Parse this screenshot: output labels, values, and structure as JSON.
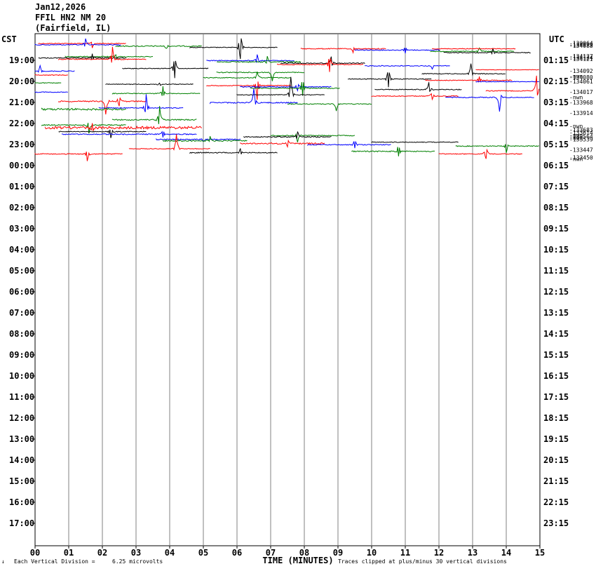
{
  "header": {
    "date": "Jan12,2026",
    "station": "FFIL HN2 NM 20",
    "location": "(Fairfield, IL)"
  },
  "labels": {
    "left_tz": "CST",
    "right_tz": "UTC",
    "xlabel": "TIME (MINUTES)",
    "footer_left": "Each Vertical Division =",
    "footer_value": "6.25 microvolts",
    "footer_right": "Traces clipped at plus/minus 30 vertical divisions",
    "corner_mark": "↓"
  },
  "colors": {
    "grid": "#808080",
    "trace_colors": [
      "#ff0000",
      "#0000ff",
      "#008000",
      "#000000"
    ]
  },
  "chart_data": {
    "type": "line",
    "title": "FFIL HN2 NM 20 (Fairfield, IL) Jan12,2026",
    "xlabel": "TIME (MINUTES)",
    "xlim": [
      0,
      15
    ],
    "x_ticks": [
      "00",
      "01",
      "02",
      "03",
      "04",
      "05",
      "06",
      "07",
      "08",
      "09",
      "10",
      "11",
      "12",
      "13",
      "14",
      "15"
    ],
    "left_hour_labels": [
      "19:00",
      "20:00",
      "21:00",
      "22:00",
      "23:00",
      "00:00",
      "01:00",
      "02:00",
      "03:00",
      "04:00",
      "05:00",
      "06:00",
      "07:00",
      "08:00",
      "09:00",
      "10:00",
      "11:00",
      "12:00",
      "13:00",
      "14:00",
      "15:00",
      "16:00",
      "17:00"
    ],
    "right_hour_labels": [
      "01:15",
      "02:15",
      "03:15",
      "04:15",
      "05:15",
      "06:15",
      "07:15",
      "08:15",
      "09:15",
      "10:15",
      "11:15",
      "12:15",
      "13:15",
      "14:15",
      "15:15",
      "16:15",
      "17:15",
      "18:15",
      "19:15",
      "20:15",
      "21:15",
      "22:15",
      "23:15"
    ],
    "rows_per_hour": 4,
    "first_row_hour_offset": -0.75,
    "right_annotations": [
      {
        "row": -0.08,
        "text": "-130064"
      },
      {
        "row": 0.17,
        "text": "-134079"
      },
      {
        "row": 0.42,
        "text": "-134088"
      },
      {
        "row": 2.42,
        "text": "-134127"
      },
      {
        "row": 2.67,
        "text": "-134124"
      },
      {
        "row": 2.92,
        "text": "-134121"
      },
      {
        "row": 5.17,
        "text": "-134092"
      },
      {
        "row": 6.17,
        "text": "-nwn"
      },
      {
        "row": 6.42,
        "text": "-134080"
      },
      {
        "row": 7.17,
        "text": "-134061"
      },
      {
        "row": 9.17,
        "text": "-134017"
      },
      {
        "row": 10.17,
        "text": "-nwn"
      },
      {
        "row": 11.17,
        "text": "-133968"
      },
      {
        "row": 13.17,
        "text": "-133914"
      },
      {
        "row": 15.67,
        "text": "-nwn"
      },
      {
        "row": 16.42,
        "text": "-133683"
      },
      {
        "row": 16.92,
        "text": "-133614"
      },
      {
        "row": 17.42,
        "text": "-nwn"
      },
      {
        "row": 17.67,
        "text": "-133564"
      },
      {
        "row": 17.92,
        "text": "-nwn"
      },
      {
        "row": 18.17,
        "text": "-133539"
      },
      {
        "row": 20.17,
        "text": "-133447"
      },
      {
        "row": 21.67,
        "text": "-133450"
      },
      {
        "row": 21.92,
        "text": "-nwn"
      }
    ],
    "segments": [
      {
        "row": 0,
        "start": 0.1,
        "end": 2.7,
        "noise": 0.6,
        "events": [
          {
            "at": 1.7,
            "amp": 6
          }
        ]
      },
      {
        "row": 0.25,
        "start": 0.0,
        "end": 2.55,
        "noise": 0.6,
        "events": [
          {
            "at": 1.5,
            "amp": -9
          }
        ]
      },
      {
        "row": 0.5,
        "start": 2.4,
        "end": 4.95,
        "noise": 0.8,
        "events": [
          {
            "at": 3.9,
            "amp": 4
          }
        ]
      },
      {
        "row": 0.75,
        "start": 4.6,
        "end": 7.2,
        "noise": 0.5,
        "events": [
          {
            "at": 6.1,
            "amp": -28
          }
        ]
      },
      {
        "row": 1,
        "start": 7.9,
        "end": 10.45,
        "noise": 0.6,
        "events": [
          {
            "at": 9.45,
            "amp": 5
          }
        ]
      },
      {
        "row": 1.25,
        "start": 9.5,
        "end": 12.05,
        "noise": 0.6,
        "events": [
          {
            "at": 11.0,
            "amp": -7
          }
        ]
      },
      {
        "row": 1.5,
        "start": 11.75,
        "end": 14.25,
        "noise": 0.6,
        "events": [
          {
            "at": 13.2,
            "amp": -5
          }
        ]
      },
      {
        "row": 1.75,
        "start": 12.15,
        "end": 14.75,
        "noise": 0.6,
        "events": [
          {
            "at": 13.6,
            "amp": -6
          }
        ]
      },
      {
        "row": 1.0,
        "start": 11.8,
        "end": 14.3,
        "noise": 0.5,
        "events": []
      },
      {
        "row": 2.5,
        "start": 0.9,
        "end": 3.5,
        "noise": 0.6,
        "events": [
          {
            "at": 2.4,
            "amp": 5
          }
        ]
      },
      {
        "row": 2.75,
        "start": 0.1,
        "end": 2.7,
        "noise": 0.6,
        "events": [
          {
            "at": 1.7,
            "amp": -6
          }
        ]
      },
      {
        "row": 3.0,
        "start": 0.7,
        "end": 3.3,
        "noise": 0.6,
        "events": [
          {
            "at": 2.3,
            "amp": -18
          }
        ]
      },
      {
        "row": 3.25,
        "start": 5.1,
        "end": 7.7,
        "noise": 0.6,
        "events": [
          {
            "at": 6.6,
            "amp": -9
          }
        ]
      },
      {
        "row": 3.5,
        "start": 5.4,
        "end": 7.9,
        "noise": 0.8,
        "events": [
          {
            "at": 6.9,
            "amp": -8
          }
        ]
      },
      {
        "row": 3.75,
        "start": 7.3,
        "end": 9.8,
        "noise": 0.6,
        "events": [
          {
            "at": 8.8,
            "amp": -10
          }
        ]
      },
      {
        "row": 4.0,
        "start": 7.2,
        "end": 9.75,
        "noise": 0.6,
        "events": [
          {
            "at": 8.75,
            "amp": -18
          }
        ]
      },
      {
        "row": 4.25,
        "start": 9.8,
        "end": 12.35,
        "noise": 0.6,
        "events": [
          {
            "at": 11.8,
            "amp": 4
          }
        ]
      },
      {
        "row": 4.75,
        "start": 2.6,
        "end": 5.15,
        "noise": 0.5,
        "events": [
          {
            "at": 4.15,
            "amp": -22
          }
        ]
      },
      {
        "row": 5.0,
        "start": 13.1,
        "end": 15.0,
        "noise": 0.3,
        "events": []
      },
      {
        "row": 5.25,
        "start": 0.0,
        "end": 1.2,
        "noise": 0.6,
        "events": [
          {
            "at": 0.15,
            "amp": -8
          }
        ]
      },
      {
        "row": 5.5,
        "start": 5.4,
        "end": 8.0,
        "noise": 0.6,
        "events": [
          {
            "at": 7.05,
            "amp": 12
          }
        ]
      },
      {
        "row": 5.75,
        "start": 11.5,
        "end": 14.0,
        "noise": 0.5,
        "events": [
          {
            "at": 12.95,
            "amp": -14
          }
        ]
      },
      {
        "row": 6.0,
        "start": 0.0,
        "end": 1.0,
        "noise": 0.5,
        "events": []
      },
      {
        "row": 6.5,
        "start": 5.0,
        "end": 7.6,
        "noise": 0.6,
        "events": [
          {
            "at": 6.6,
            "amp": -8
          }
        ]
      },
      {
        "row": 6.75,
        "start": 9.3,
        "end": 11.8,
        "noise": 0.6,
        "events": [
          {
            "at": 10.5,
            "amp": -20
          }
        ]
      },
      {
        "row": 7.0,
        "start": 11.6,
        "end": 14.2,
        "noise": 0.6,
        "events": [
          {
            "at": 13.2,
            "amp": -5
          }
        ]
      },
      {
        "row": 7.25,
        "start": 13.1,
        "end": 15.0,
        "noise": 0.5,
        "events": []
      },
      {
        "row": 7.5,
        "start": 0.0,
        "end": 0.8,
        "noise": 0.5,
        "events": []
      },
      {
        "row": 7.75,
        "start": 2.1,
        "end": 4.7,
        "noise": 0.5,
        "events": [
          {
            "at": 3.7,
            "amp": 3
          }
        ]
      },
      {
        "row": 8.0,
        "start": 5.1,
        "end": 7.6,
        "noise": 0.6,
        "events": [
          {
            "at": 6.6,
            "amp": 20
          }
        ]
      },
      {
        "row": 8.25,
        "start": 6.1,
        "end": 8.8,
        "noise": 0.6,
        "events": [
          {
            "at": 7.8,
            "amp": -8
          }
        ]
      },
      {
        "row": 8.5,
        "start": 6.4,
        "end": 9.05,
        "noise": 0.6,
        "events": [
          {
            "at": 7.95,
            "amp": -18
          }
        ]
      },
      {
        "row": 8.75,
        "start": 10.1,
        "end": 12.7,
        "noise": 0.6,
        "events": [
          {
            "at": 11.7,
            "amp": -10
          }
        ]
      },
      {
        "row": 9.0,
        "start": 13.4,
        "end": 15.0,
        "noise": 0.6,
        "events": [
          {
            "at": 14.9,
            "amp": -22
          }
        ]
      },
      {
        "row": 9.25,
        "start": 0.0,
        "end": 1.0,
        "noise": 0.5,
        "events": []
      },
      {
        "row": 9.5,
        "start": 2.3,
        "end": 4.9,
        "noise": 0.6,
        "events": [
          {
            "at": 3.8,
            "amp": -10
          }
        ]
      },
      {
        "row": 9.75,
        "start": 6.0,
        "end": 8.6,
        "noise": 0.5,
        "events": [
          {
            "at": 7.6,
            "amp": -25
          }
        ]
      },
      {
        "row": 10.0,
        "start": 10.0,
        "end": 12.6,
        "noise": 0.6,
        "events": [
          {
            "at": 11.8,
            "amp": -7
          }
        ]
      },
      {
        "row": 10.25,
        "start": 12.2,
        "end": 14.85,
        "noise": 0.6,
        "events": [
          {
            "at": 13.8,
            "amp": 20
          }
        ]
      },
      {
        "row": 11.0,
        "start": 0.7,
        "end": 3.3,
        "noise": 0.8,
        "events": [
          {
            "at": 2.1,
            "amp": 18
          },
          {
            "at": 2.5,
            "amp": -10
          }
        ]
      },
      {
        "row": 11.25,
        "start": 5.2,
        "end": 7.8,
        "noise": 0.8,
        "events": [
          {
            "at": 6.5,
            "amp": -20
          }
        ]
      },
      {
        "row": 11.5,
        "start": 7.5,
        "end": 10.0,
        "noise": 0.6,
        "events": [
          {
            "at": 8.95,
            "amp": 10
          }
        ]
      },
      {
        "row": 12.25,
        "start": 1.9,
        "end": 4.4,
        "noise": 0.6,
        "events": [
          {
            "at": 3.3,
            "amp": -20
          }
        ]
      },
      {
        "row": 12.5,
        "start": 0.2,
        "end": 2.7,
        "noise": 1.4,
        "events": []
      },
      {
        "row": 14.5,
        "start": 2.3,
        "end": 4.8,
        "noise": 0.8,
        "events": [
          {
            "at": 3.7,
            "amp": -20
          }
        ]
      },
      {
        "row": 15.5,
        "start": 0.2,
        "end": 2.7,
        "noise": 0.7,
        "events": [
          {
            "at": 1.6,
            "amp": 12
          }
        ]
      },
      {
        "row": 16.0,
        "start": 0.3,
        "end": 4.95,
        "noise": 1.8,
        "events": [
          {
            "at": 1.7,
            "amp": 8
          }
        ]
      },
      {
        "row": 16.75,
        "start": 0.7,
        "end": 3.3,
        "noise": 0.6,
        "events": [
          {
            "at": 2.25,
            "amp": 9
          }
        ]
      },
      {
        "row": 17.25,
        "start": 0.8,
        "end": 4.8,
        "noise": 0.7,
        "events": [
          {
            "at": 3.8,
            "amp": -8
          }
        ]
      },
      {
        "row": 17.5,
        "start": 7.0,
        "end": 9.5,
        "noise": 0.6,
        "events": [
          {
            "at": 7.8,
            "amp": 9
          }
        ]
      },
      {
        "row": 17.75,
        "start": 6.2,
        "end": 8.8,
        "noise": 0.7,
        "events": [
          {
            "at": 7.8,
            "amp": -8
          }
        ]
      },
      {
        "row": 18.25,
        "start": 3.6,
        "end": 6.1,
        "noise": 0.8,
        "events": [
          {
            "at": 5.0,
            "amp": 3
          }
        ]
      },
      {
        "row": 18.5,
        "start": 3.8,
        "end": 6.3,
        "noise": 0.9,
        "events": [
          {
            "at": 5.2,
            "amp": -6
          }
        ]
      },
      {
        "row": 18.75,
        "start": 10.0,
        "end": 12.6,
        "noise": 0.5,
        "events": []
      },
      {
        "row": 19.0,
        "start": 6.1,
        "end": 8.6,
        "noise": 1.0,
        "events": [
          {
            "at": 7.5,
            "amp": -8
          }
        ]
      },
      {
        "row": 19.25,
        "start": 8.1,
        "end": 10.6,
        "noise": 0.6,
        "events": [
          {
            "at": 9.5,
            "amp": -9
          }
        ]
      },
      {
        "row": 19.5,
        "start": 12.5,
        "end": 15.0,
        "noise": 0.6,
        "events": [
          {
            "at": 14.0,
            "amp": 10
          }
        ]
      },
      {
        "row": 20.0,
        "start": 2.8,
        "end": 5.2,
        "noise": 0.5,
        "events": [
          {
            "at": 4.2,
            "amp": -20
          }
        ]
      },
      {
        "row": 20.5,
        "start": 9.4,
        "end": 11.9,
        "noise": 0.8,
        "events": [
          {
            "at": 10.8,
            "amp": -12
          }
        ]
      },
      {
        "row": 20.75,
        "start": 4.6,
        "end": 7.2,
        "noise": 0.7,
        "events": [
          {
            "at": 6.1,
            "amp": -6
          }
        ]
      },
      {
        "row": 21.0,
        "start": 0.0,
        "end": 2.6,
        "noise": 0.6,
        "events": [
          {
            "at": 1.55,
            "amp": 10
          }
        ]
      },
      {
        "row": 21.0,
        "start": 12.0,
        "end": 14.5,
        "noise": 0.6,
        "events": [
          {
            "at": 13.4,
            "amp": -12
          }
        ]
      }
    ]
  }
}
